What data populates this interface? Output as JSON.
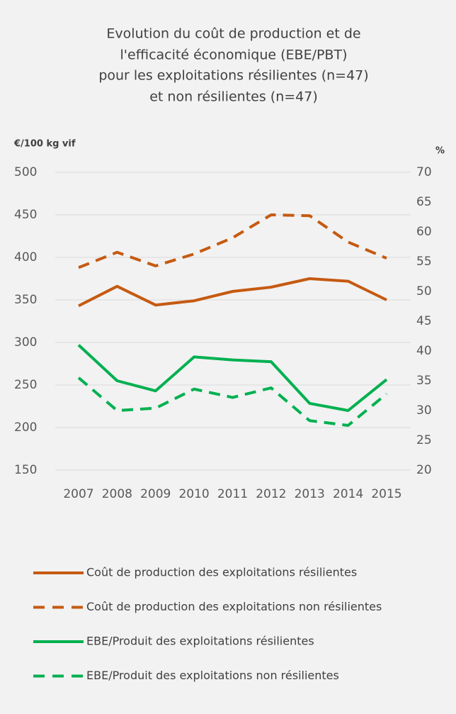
{
  "chart_data": {
    "type": "line",
    "title": [
      "Evolution du coût de production et de",
      "l'efficacité économique (EBE/PBT)",
      "pour les exploitations résilientes (n=47)",
      "et non résilientes (n=47)"
    ],
    "y_label": "€/100 kg vif",
    "y2_label": "%",
    "categories": [
      "2007",
      "2008",
      "2009",
      "2010",
      "2011",
      "2012",
      "2013",
      "2014",
      "2015"
    ],
    "ylim": [
      150,
      500
    ],
    "yticks": [
      150,
      200,
      250,
      300,
      350,
      400,
      450,
      500
    ],
    "y2lim": [
      20,
      70
    ],
    "y2ticks": [
      20,
      25,
      30,
      35,
      40,
      45,
      50,
      55,
      60,
      65,
      70
    ],
    "grid": true,
    "series": [
      {
        "name": "Coût de production  des exploitations résilientes",
        "color": "#c55a11",
        "dash": false,
        "values": [
          343,
          366,
          344,
          349,
          360,
          365,
          375,
          372,
          350
        ]
      },
      {
        "name": "Coût de production  des exploitations non résilientes",
        "color": "#c55a11",
        "dash": true,
        "values": [
          388,
          406,
          390,
          404,
          423,
          450,
          449,
          418,
          399
        ]
      },
      {
        "name": "EBE/Produit des exploitations résilientes",
        "color": "#00b050",
        "dash": false,
        "axis": "y2",
        "values": [
          41,
          35,
          33.3,
          39,
          38.5,
          38.2,
          31.2,
          30,
          35.2
        ]
      },
      {
        "name": "EBE/Produit des exploitations non résilientes",
        "color": "#00b050",
        "dash": true,
        "axis": "y2",
        "values": [
          35.5,
          30,
          30.4,
          33.6,
          32.2,
          33.8,
          28.3,
          27.5,
          32.8
        ]
      }
    ]
  }
}
